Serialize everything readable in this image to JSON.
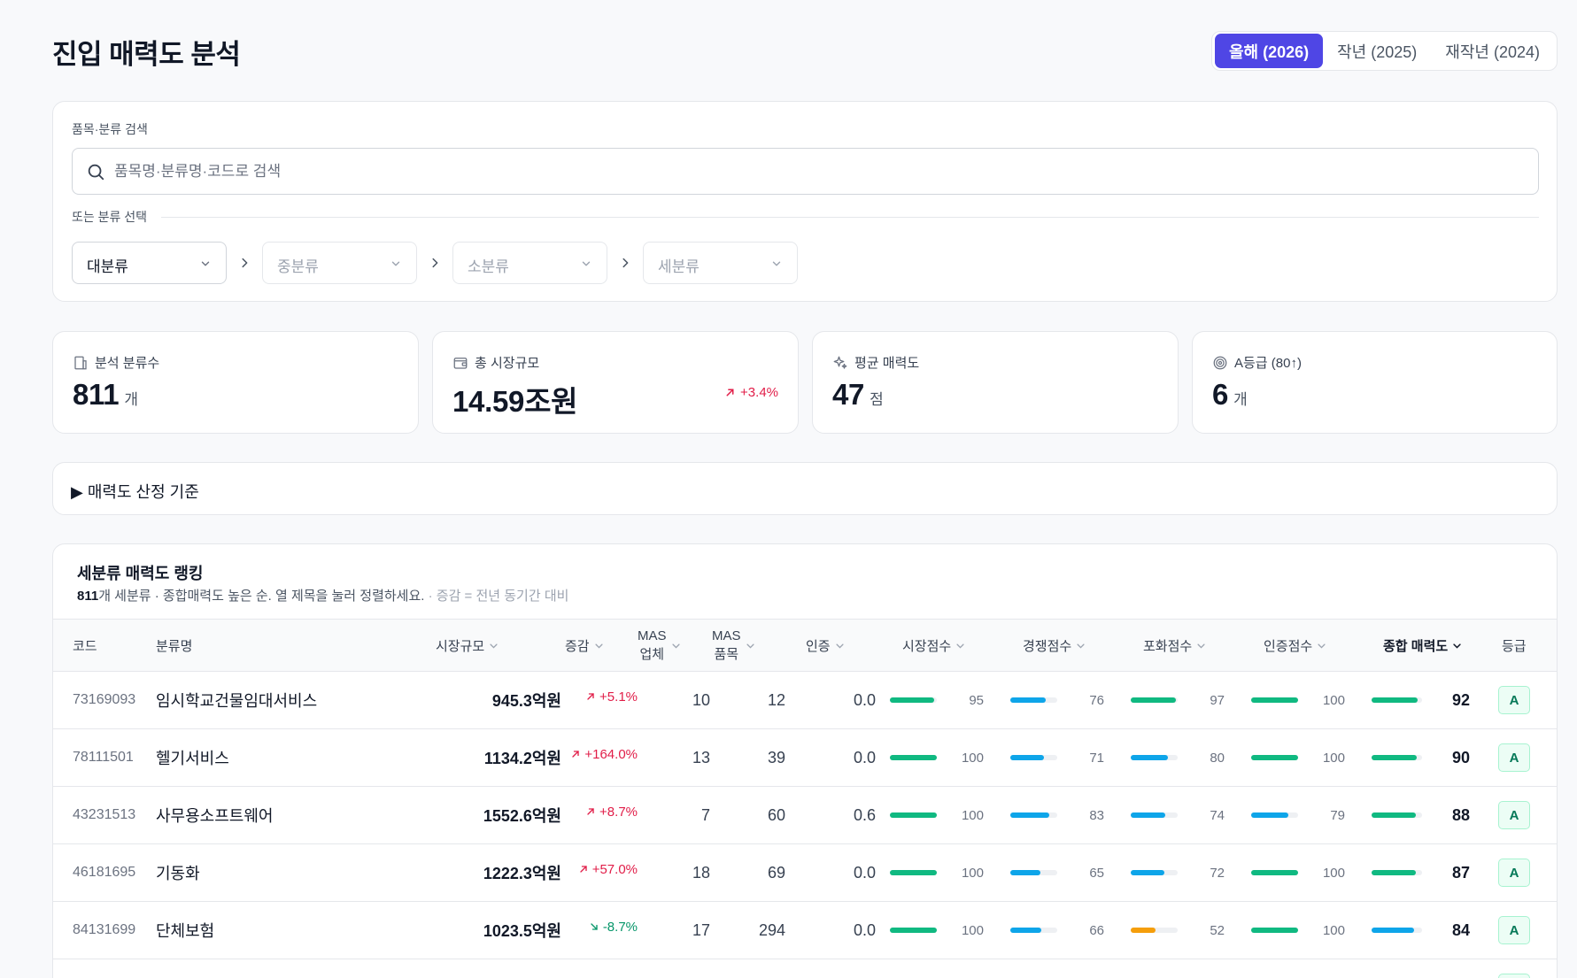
{
  "header": {
    "title": "진입 매력도 분석",
    "years": [
      {
        "label": "올해 (2026)",
        "active": true
      },
      {
        "label": "작년 (2025)",
        "active": false
      },
      {
        "label": "재작년 (2024)",
        "active": false
      }
    ]
  },
  "search": {
    "label": "품목·분류 검색",
    "placeholder": "품목명·분류명·코드로 검색",
    "value": "",
    "or_label": "또는 분류 선택",
    "selects": [
      {
        "label": "대분류",
        "enabled": true
      },
      {
        "label": "중분류",
        "enabled": false
      },
      {
        "label": "소분류",
        "enabled": false
      },
      {
        "label": "세분류",
        "enabled": false
      }
    ]
  },
  "stats": [
    {
      "icon": "building-icon",
      "label": "분석 분류수",
      "value": "811",
      "unit": "개",
      "trend": ""
    },
    {
      "icon": "wallet-icon",
      "label": "총 시장규모",
      "value": "14.59조원",
      "unit": "",
      "trend": "+3.4%"
    },
    {
      "icon": "sparkle-icon",
      "label": "평균 매력도",
      "value": "47",
      "unit": "점",
      "trend": ""
    },
    {
      "icon": "target-icon",
      "label": "A등급 (80↑)",
      "value": "6",
      "unit": "개",
      "trend": ""
    }
  ],
  "criteria": {
    "label": "▶ 매력도 산정 기준"
  },
  "ranking": {
    "title": "세분류 매력도 랭킹",
    "count": "811",
    "subtitle": "개 세분류 · 종합매력도 높은 순. 열 제목을 눌러 정렬하세요.",
    "note": " · 증감 = 전년 동기간 대비",
    "columns": {
      "code": "코드",
      "name": "분류명",
      "size": "시장규모",
      "change": "증감",
      "mas_firms_1": "MAS",
      "mas_firms_2": "업체",
      "mas_items_1": "MAS",
      "mas_items_2": "품목",
      "cert": "인증",
      "market": "시장점수",
      "competition": "경쟁점수",
      "saturation": "포화점수",
      "certscore": "인증점수",
      "total": "종합 매력도",
      "grade": "등급"
    },
    "colors": {
      "green": "#10b981",
      "blue": "#0ea5e9",
      "orange": "#f59e0b"
    },
    "rows": [
      {
        "code": "73169093",
        "name": "임시학교건물임대서비스",
        "size": "945.3억원",
        "change": "+5.1%",
        "dir": "up",
        "firms": "10",
        "items": "12",
        "cert": "0.0",
        "market": 95,
        "competition": 76,
        "saturation": 97,
        "certscore": 100,
        "total": 92,
        "grade": "A"
      },
      {
        "code": "78111501",
        "name": "헬기서비스",
        "size": "1134.2억원",
        "change": "+164.0%",
        "dir": "up",
        "firms": "13",
        "items": "39",
        "cert": "0.0",
        "market": 100,
        "competition": 71,
        "saturation": 80,
        "certscore": 100,
        "total": 90,
        "grade": "A"
      },
      {
        "code": "43231513",
        "name": "사무용소프트웨어",
        "size": "1552.6억원",
        "change": "+8.7%",
        "dir": "up",
        "firms": "7",
        "items": "60",
        "cert": "0.6",
        "market": 100,
        "competition": 83,
        "saturation": 74,
        "certscore": 79,
        "total": 88,
        "grade": "A"
      },
      {
        "code": "46181695",
        "name": "기동화",
        "size": "1222.3억원",
        "change": "+57.0%",
        "dir": "up",
        "firms": "18",
        "items": "69",
        "cert": "0.0",
        "market": 100,
        "competition": 65,
        "saturation": 72,
        "certscore": 100,
        "total": 87,
        "grade": "A"
      },
      {
        "code": "84131699",
        "name": "단체보험",
        "size": "1023.5억원",
        "change": "-8.7%",
        "dir": "down",
        "firms": "17",
        "items": "294",
        "cert": "0.0",
        "market": 100,
        "competition": 66,
        "saturation": 52,
        "certscore": 100,
        "total": 84,
        "grade": "A"
      }
    ]
  }
}
